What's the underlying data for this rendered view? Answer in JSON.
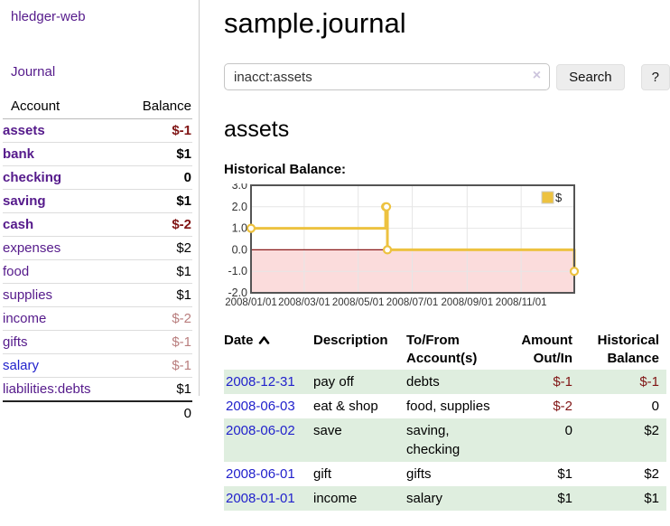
{
  "sidebar": {
    "brand": "hledger-web",
    "nav": {
      "journal": "Journal"
    },
    "accounts_table": {
      "headers": {
        "account": "Account",
        "balance": "Balance"
      },
      "rows": [
        {
          "name": "assets",
          "balance": "$-1",
          "level": 1,
          "bold": true,
          "balance_style": "neg",
          "link_style": "purple"
        },
        {
          "name": "bank",
          "balance": "$1",
          "level": 2,
          "bold": true,
          "balance_style": "pos",
          "link_style": "purple"
        },
        {
          "name": "checking",
          "balance": "0",
          "level": 3,
          "bold": true,
          "balance_style": "pos",
          "link_style": "purple"
        },
        {
          "name": "saving",
          "balance": "$1",
          "level": 3,
          "bold": true,
          "balance_style": "pos",
          "link_style": "purple"
        },
        {
          "name": "cash",
          "balance": "$-2",
          "level": 2,
          "bold": true,
          "balance_style": "neg",
          "link_style": "purple"
        },
        {
          "name": "expenses",
          "balance": "$2",
          "level": 1,
          "bold": false,
          "balance_style": "pos",
          "link_style": "purple"
        },
        {
          "name": "food",
          "balance": "$1",
          "level": 2,
          "bold": false,
          "balance_style": "pos",
          "link_style": "purple"
        },
        {
          "name": "supplies",
          "balance": "$1",
          "level": 2,
          "bold": false,
          "balance_style": "pos",
          "link_style": "purple"
        },
        {
          "name": "income",
          "balance": "$-2",
          "level": 1,
          "bold": false,
          "balance_style": "negfaded",
          "link_style": "purple"
        },
        {
          "name": "gifts",
          "balance": "$-1",
          "level": 2,
          "bold": false,
          "balance_style": "negfaded",
          "link_style": "purple"
        },
        {
          "name": "salary",
          "balance": "$-1",
          "level": 2,
          "bold": false,
          "balance_style": "negfaded",
          "link_style": "blue"
        },
        {
          "name": "liabilities:debts",
          "balance": "$1",
          "level": 1,
          "bold": false,
          "balance_style": "pos",
          "link_style": "purple"
        }
      ],
      "total": "0"
    }
  },
  "main": {
    "title": "sample.journal",
    "search": {
      "query": "inacct:assets",
      "clear_icon": "×",
      "button": "Search",
      "help_button": "?"
    },
    "account_heading": "assets",
    "chart_heading": "Historical Balance:"
  },
  "chart_data": {
    "type": "line",
    "step": true,
    "title": "Historical Balance:",
    "series": [
      {
        "name": "$",
        "color": "#edc240",
        "points": [
          [
            "2008-01-01",
            1.0
          ],
          [
            "2008-06-01",
            2.0
          ],
          [
            "2008-06-02",
            2.0
          ],
          [
            "2008-06-03",
            0.0
          ],
          [
            "2008-12-31",
            -1.0
          ]
        ]
      }
    ],
    "x_range": [
      "2008-01-01",
      "2008-12-31"
    ],
    "y_range": [
      -2.0,
      3.0
    ],
    "y_ticks": [
      3.0,
      2.0,
      1.0,
      0.0,
      -1.0,
      -2.0
    ],
    "x_tick_labels": [
      "2008/01/01",
      "2008/03/01",
      "2008/05/01",
      "2008/07/01",
      "2008/09/01",
      "2008/11/01"
    ],
    "legend": {
      "position": "top-right",
      "label": "$"
    },
    "grid": true,
    "negative_region_color": "#fbdcdc",
    "zero_line_color": "#8b1a1a",
    "plot_border_color": "#545454",
    "grid_color": "#e6e6e6"
  },
  "register": {
    "headers": {
      "date": "Date",
      "description": "Description",
      "tofrom_line1": "To/From",
      "tofrom_line2": "Account(s)",
      "amount_line1": "Amount",
      "amount_line2": "Out/In",
      "balance_line1": "Historical",
      "balance_line2": "Balance"
    },
    "rows": [
      {
        "date": "2008-12-31",
        "description": "pay off",
        "tofrom": "debts",
        "amount": "$-1",
        "amount_style": "neg",
        "balance": "$-1",
        "balance_style": "neg"
      },
      {
        "date": "2008-06-03",
        "description": "eat & shop",
        "tofrom": "food, supplies",
        "amount": "$-2",
        "amount_style": "neg",
        "balance": "0",
        "balance_style": "pos"
      },
      {
        "date": "2008-06-02",
        "description": "save",
        "tofrom": "saving, checking",
        "amount": "0",
        "amount_style": "pos",
        "balance": "$2",
        "balance_style": "pos"
      },
      {
        "date": "2008-06-01",
        "description": "gift",
        "tofrom": "gifts",
        "amount": "$1",
        "amount_style": "pos",
        "balance": "$2",
        "balance_style": "pos"
      },
      {
        "date": "2008-01-01",
        "description": "income",
        "tofrom": "salary",
        "amount": "$1",
        "amount_style": "pos",
        "balance": "$1",
        "balance_style": "pos"
      }
    ]
  },
  "colors": {
    "link_purple": "#551a8b",
    "link_blue": "#2222cc",
    "negative": "#801515",
    "negative_faded": "#b97e7e",
    "row_stripe_green": "#dfeedf",
    "series_gold": "#edc240"
  }
}
